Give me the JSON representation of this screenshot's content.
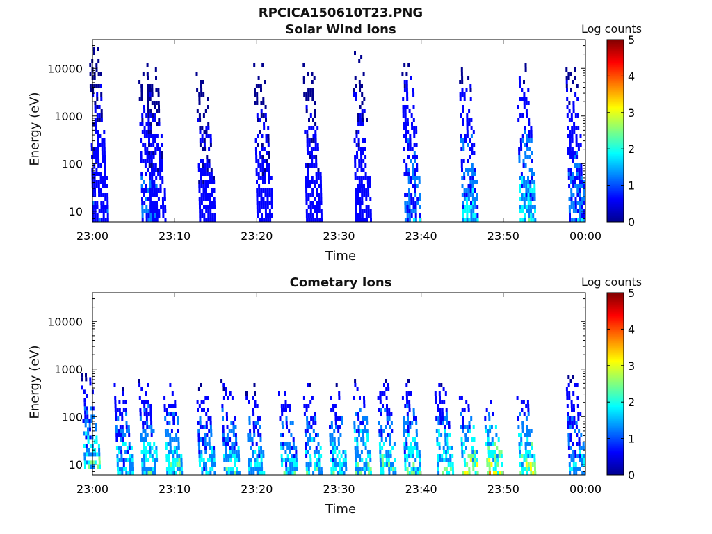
{
  "figure": {
    "title": "RPCICA150610T23.PNG"
  },
  "colormap": [
    "#00008f",
    "#0000ff",
    "#0080ff",
    "#00ffff",
    "#80ff80",
    "#ffff00",
    "#ff8000",
    "#ff0000",
    "#800000"
  ],
  "chart_data": [
    {
      "type": "heatmap",
      "title": "Solar Wind Ions",
      "xlabel": "Time",
      "ylabel": "Energy (eV)",
      "y_scale": "log",
      "ylim": [
        6,
        40000
      ],
      "y_ticks": [
        10,
        100,
        1000,
        10000
      ],
      "y_tick_labels": [
        "10",
        "100",
        "1000",
        "10000"
      ],
      "xlim": [
        "23:00",
        "00:00"
      ],
      "x_ticks": [
        "23:00",
        "23:10",
        "23:20",
        "23:30",
        "23:40",
        "23:50",
        "00:00"
      ],
      "colorbar": {
        "label": "Log counts",
        "range": [
          0,
          5
        ],
        "ticks": [
          "0",
          "1",
          "2",
          "3",
          "4",
          "5"
        ]
      },
      "features": [
        {
          "time": "23:01",
          "emin": 6,
          "emax": 25000,
          "peak": 1.0
        },
        {
          "time": "23:07",
          "emin": 6,
          "emax": 8000,
          "peak": 1.5
        },
        {
          "time": "23:08",
          "emin": 6,
          "emax": 12000,
          "peak": 0.8
        },
        {
          "time": "23:14",
          "emin": 6,
          "emax": 8000,
          "peak": 0.8
        },
        {
          "time": "23:21",
          "emin": 6,
          "emax": 12000,
          "peak": 0.8
        },
        {
          "time": "23:27",
          "emin": 6,
          "emax": 15000,
          "peak": 0.8
        },
        {
          "time": "23:33",
          "emin": 6,
          "emax": 20000,
          "peak": 0.9
        },
        {
          "time": "23:39",
          "emin": 6,
          "emax": 18000,
          "peak": 1.6
        },
        {
          "time": "23:46",
          "emin": 6,
          "emax": 12000,
          "peak": 2.0
        },
        {
          "time": "23:53",
          "emin": 6,
          "emax": 15000,
          "peak": 2.2
        },
        {
          "time": "23:59",
          "emin": 6,
          "emax": 10000,
          "peak": 1.6
        }
      ]
    },
    {
      "type": "heatmap",
      "title": "Cometary Ions",
      "xlabel": "Time",
      "ylabel": "Energy (eV)",
      "y_scale": "log",
      "ylim": [
        6,
        40000
      ],
      "y_ticks": [
        10,
        100,
        1000,
        10000
      ],
      "y_tick_labels": [
        "10",
        "100",
        "1000",
        "10000"
      ],
      "xlim": [
        "23:00",
        "00:00"
      ],
      "x_ticks": [
        "23:00",
        "23:10",
        "23:20",
        "23:30",
        "23:40",
        "23:50",
        "00:00"
      ],
      "colorbar": {
        "label": "Log counts",
        "range": [
          0,
          5
        ],
        "ticks": [
          "0",
          "1",
          "2",
          "3",
          "4",
          "5"
        ]
      },
      "features": [
        {
          "time": "23:00",
          "emin": 8,
          "emax": 700,
          "peak": 2.5
        },
        {
          "time": "23:04",
          "emin": 6,
          "emax": 500,
          "peak": 2.3
        },
        {
          "time": "23:07",
          "emin": 6,
          "emax": 600,
          "peak": 2.5
        },
        {
          "time": "23:10",
          "emin": 6,
          "emax": 500,
          "peak": 2.6
        },
        {
          "time": "23:14",
          "emin": 6,
          "emax": 500,
          "peak": 2.2
        },
        {
          "time": "23:17",
          "emin": 6,
          "emax": 600,
          "peak": 2.4
        },
        {
          "time": "23:20",
          "emin": 6,
          "emax": 500,
          "peak": 2.2
        },
        {
          "time": "23:24",
          "emin": 6,
          "emax": 400,
          "peak": 2.4
        },
        {
          "time": "23:27",
          "emin": 6,
          "emax": 500,
          "peak": 2.4
        },
        {
          "time": "23:30",
          "emin": 6,
          "emax": 500,
          "peak": 2.3
        },
        {
          "time": "23:33",
          "emin": 6,
          "emax": 600,
          "peak": 2.6
        },
        {
          "time": "23:36",
          "emin": 6,
          "emax": 700,
          "peak": 2.6
        },
        {
          "time": "23:39",
          "emin": 6,
          "emax": 600,
          "peak": 2.7
        },
        {
          "time": "23:43",
          "emin": 6,
          "emax": 500,
          "peak": 2.7
        },
        {
          "time": "23:46",
          "emin": 6,
          "emax": 300,
          "peak": 3.3
        },
        {
          "time": "23:49",
          "emin": 6,
          "emax": 200,
          "peak": 3.8
        },
        {
          "time": "23:53",
          "emin": 6,
          "emax": 300,
          "peak": 3.2
        },
        {
          "time": "23:59",
          "emin": 6,
          "emax": 700,
          "peak": 2.0
        }
      ]
    }
  ]
}
